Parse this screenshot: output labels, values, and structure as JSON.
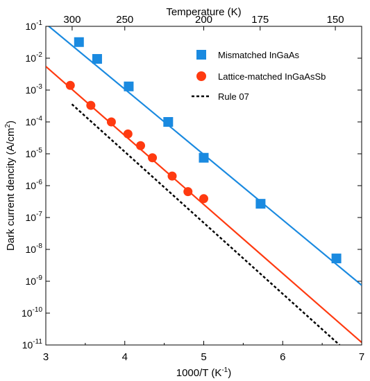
{
  "chart_data": {
    "type": "scatter",
    "xlabel": "1000/T (K",
    "xlabel_sup": "-1",
    "xlabel_close": ")",
    "ylabel": "Dark current dencity (A/cm",
    "ylabel_sup": "2",
    "ylabel_close": ")",
    "top_axis_label": "Temperature (K)",
    "xlim": [
      3,
      7
    ],
    "ylim_log10": [
      -11,
      -1
    ],
    "y_scale": "log",
    "x_ticks": [
      "3",
      "4",
      "5",
      "6",
      "7"
    ],
    "y_ticks": [
      {
        "base": "10",
        "exp": "-1"
      },
      {
        "base": "10",
        "exp": "-2"
      },
      {
        "base": "10",
        "exp": "-3"
      },
      {
        "base": "10",
        "exp": "-4"
      },
      {
        "base": "10",
        "exp": "-5"
      },
      {
        "base": "10",
        "exp": "-6"
      },
      {
        "base": "10",
        "exp": "-7"
      },
      {
        "base": "10",
        "exp": "-8"
      },
      {
        "base": "10",
        "exp": "-9"
      },
      {
        "base": "10",
        "exp": "-10"
      },
      {
        "base": "10",
        "exp": "-11"
      }
    ],
    "top_ticks": [
      "300",
      "250",
      "200",
      "175",
      "150"
    ],
    "top_tick_temperatures_K": [
      300,
      250,
      200,
      175,
      150
    ],
    "grid": false,
    "legend_position": "top-right",
    "series": [
      {
        "name": "Mismatched InGaAs",
        "marker": "square",
        "color": "#1a8ae0",
        "points": [
          {
            "x": 3.42,
            "y": 0.032
          },
          {
            "x": 3.65,
            "y": 0.0095
          },
          {
            "x": 4.05,
            "y": 0.0013
          },
          {
            "x": 4.55,
            "y": 0.0001
          },
          {
            "x": 5.0,
            "y": 7.5e-06
          },
          {
            "x": 5.72,
            "y": 2.7e-07
          },
          {
            "x": 6.68,
            "y": 5.2e-09
          }
        ],
        "fit": {
          "x": [
            3.0,
            7.0
          ],
          "y": [
            0.12,
            7.5e-10
          ],
          "color": "#1a8ae0"
        }
      },
      {
        "name": "Lattice-matched InGaAsSb",
        "marker": "circle",
        "color": "#ff3a10",
        "points": [
          {
            "x": 3.31,
            "y": 0.0014
          },
          {
            "x": 3.57,
            "y": 0.00033
          },
          {
            "x": 3.83,
            "y": 0.0001
          },
          {
            "x": 4.04,
            "y": 4.2e-05
          },
          {
            "x": 4.2,
            "y": 1.8e-05
          },
          {
            "x": 4.35,
            "y": 7.5e-06
          },
          {
            "x": 4.6,
            "y": 2e-06
          },
          {
            "x": 4.8,
            "y": 6.5e-07
          },
          {
            "x": 5.0,
            "y": 3.9e-07
          }
        ],
        "fit": {
          "x": [
            3.0,
            7.0
          ],
          "y": [
            0.0055,
            1.2e-11
          ],
          "color": "#ff3a10"
        }
      },
      {
        "name": "Rule 07",
        "marker": "dashed-line",
        "color": "#000000",
        "line": {
          "x": [
            3.33,
            6.72
          ],
          "y": [
            0.00036,
            1e-11
          ]
        }
      }
    ]
  }
}
